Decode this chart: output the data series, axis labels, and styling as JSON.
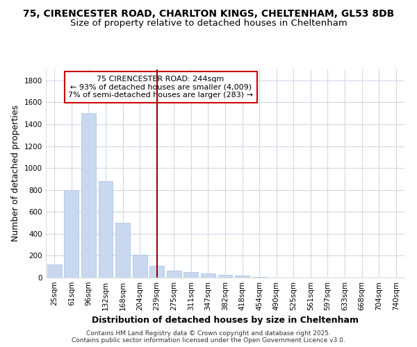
{
  "title_line1": "75, CIRENCESTER ROAD, CHARLTON KINGS, CHELTENHAM, GL53 8DB",
  "title_line2": "Size of property relative to detached houses in Cheltenham",
  "xlabel": "Distribution of detached houses by size in Cheltenham",
  "ylabel": "Number of detached properties",
  "categories": [
    "25sqm",
    "61sqm",
    "96sqm",
    "132sqm",
    "168sqm",
    "204sqm",
    "239sqm",
    "275sqm",
    "311sqm",
    "347sqm",
    "382sqm",
    "418sqm",
    "454sqm",
    "490sqm",
    "525sqm",
    "561sqm",
    "597sqm",
    "633sqm",
    "668sqm",
    "704sqm",
    "740sqm"
  ],
  "values": [
    120,
    800,
    1500,
    880,
    500,
    210,
    105,
    65,
    50,
    35,
    25,
    20,
    5,
    3,
    2,
    1,
    1,
    0,
    0,
    0,
    0
  ],
  "bar_color": "#c8d8f0",
  "bar_edge_color": "#a8c0e0",
  "highlight_line_color": "#990000",
  "annotation_box_text": "75 CIRENCESTER ROAD: 244sqm\n← 93% of detached houses are smaller (4,009)\n7% of semi-detached houses are larger (283) →",
  "annotation_box_color": "#ffffff",
  "annotation_box_edge_color": "#cc0000",
  "ylim": [
    0,
    1900
  ],
  "yticks": [
    0,
    200,
    400,
    600,
    800,
    1000,
    1200,
    1400,
    1600,
    1800
  ],
  "bg_color": "#ffffff",
  "plot_bg_color": "#ffffff",
  "grid_color": "#d0d8e8",
  "footer_line1": "Contains HM Land Registry data © Crown copyright and database right 2025.",
  "footer_line2": "Contains public sector information licensed under the Open Government Licence v3.0.",
  "title_fontsize": 10,
  "subtitle_fontsize": 9.5,
  "axis_label_fontsize": 9,
  "tick_fontsize": 7.5,
  "annotation_fontsize": 8,
  "footer_fontsize": 6.5
}
